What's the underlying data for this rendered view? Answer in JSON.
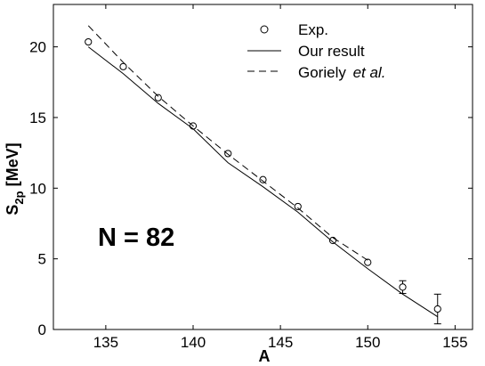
{
  "chart_data": {
    "type": "line",
    "xlabel": "A",
    "ylabel_main": "S",
    "ylabel_sub": "2p",
    "ylabel_unit": " [MeV]",
    "xlim": [
      132,
      156
    ],
    "ylim": [
      0,
      23
    ],
    "xticks": [
      135,
      140,
      145,
      150,
      155
    ],
    "yticks": [
      0,
      5,
      10,
      15,
      20
    ],
    "annotation": "N = 82",
    "legend": {
      "placement": "top-right",
      "items": [
        {
          "key": "exp",
          "prefix": "Exp.",
          "emph": ""
        },
        {
          "key": "ours",
          "prefix": "Our result",
          "emph": ""
        },
        {
          "key": "goriely",
          "prefix": "Goriely ",
          "emph": "et al."
        }
      ]
    },
    "series": [
      {
        "key": "exp",
        "name": "Exp.",
        "style": "circles",
        "x": [
          134,
          136,
          138,
          140,
          142,
          144,
          146,
          148,
          150,
          152,
          154
        ],
        "y": [
          20.35,
          18.6,
          16.4,
          14.4,
          12.45,
          10.6,
          8.7,
          6.3,
          4.75,
          3.0,
          1.45
        ],
        "err": [
          0,
          0,
          0,
          0,
          0,
          0,
          0,
          0,
          0,
          0.45,
          1.05
        ]
      },
      {
        "key": "ours",
        "name": "Our result",
        "style": "solid",
        "x": [
          134,
          136,
          138,
          140,
          142,
          144,
          146,
          148,
          150,
          152,
          154
        ],
        "y": [
          20.0,
          18.1,
          16.0,
          14.2,
          11.8,
          10.1,
          8.3,
          6.2,
          4.3,
          2.5,
          0.9
        ]
      },
      {
        "key": "goriely",
        "name": "Goriely et al.",
        "style": "dashed",
        "x": [
          134,
          136,
          138,
          140,
          142,
          144,
          146,
          148,
          150
        ],
        "y": [
          21.5,
          18.9,
          16.5,
          14.4,
          12.4,
          10.5,
          8.6,
          6.5,
          4.9
        ]
      }
    ]
  }
}
